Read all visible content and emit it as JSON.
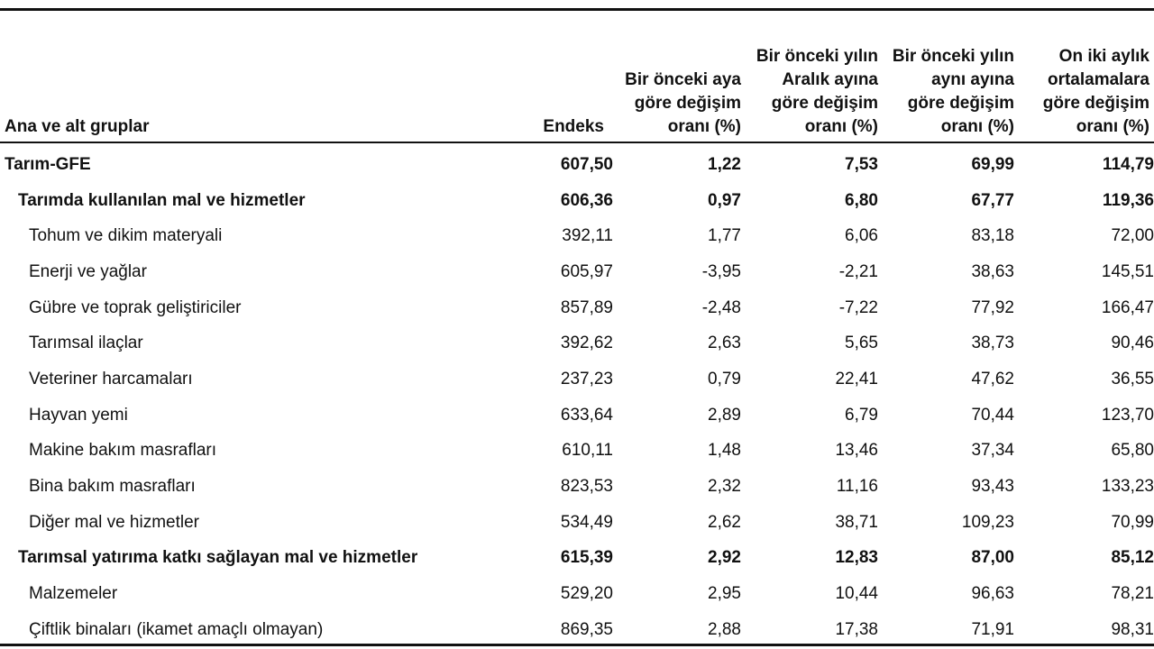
{
  "header": {
    "group_label": "Ana ve alt gruplar",
    "index_label": "Endeks",
    "col_monthly": [
      "Bir önceki aya",
      "göre değişim",
      "oranı (%)"
    ],
    "col_december": [
      "Bir önceki yılın",
      "Aralık ayına",
      "göre değişim",
      "oranı (%)"
    ],
    "col_same_month": [
      "Bir önceki yılın",
      "aynı ayına",
      "göre değişim",
      "oranı (%)"
    ],
    "col_twelve_month": [
      "On iki aylık",
      "ortalamalara",
      "göre değişim",
      "oranı (%)"
    ]
  },
  "rows": [
    {
      "label": "Tarım-GFE",
      "level": 0,
      "endeks": "607,50",
      "monthly": "1,22",
      "december": "7,53",
      "same_month": "69,99",
      "twelve_month": "114,79"
    },
    {
      "label": "Tarımda kullanılan mal ve hizmetler",
      "level": 1,
      "endeks": "606,36",
      "monthly": "0,97",
      "december": "6,80",
      "same_month": "67,77",
      "twelve_month": "119,36"
    },
    {
      "label": "Tohum ve dikim materyali",
      "level": 2,
      "endeks": "392,11",
      "monthly": "1,77",
      "december": "6,06",
      "same_month": "83,18",
      "twelve_month": "72,00"
    },
    {
      "label": "Enerji ve yağlar",
      "level": 2,
      "endeks": "605,97",
      "monthly": "-3,95",
      "december": "-2,21",
      "same_month": "38,63",
      "twelve_month": "145,51"
    },
    {
      "label": "Gübre ve toprak geliştiriciler",
      "level": 2,
      "endeks": "857,89",
      "monthly": "-2,48",
      "december": "-7,22",
      "same_month": "77,92",
      "twelve_month": "166,47"
    },
    {
      "label": "Tarımsal ilaçlar",
      "level": 2,
      "endeks": "392,62",
      "monthly": "2,63",
      "december": "5,65",
      "same_month": "38,73",
      "twelve_month": "90,46"
    },
    {
      "label": "Veteriner harcamaları",
      "level": 2,
      "endeks": "237,23",
      "monthly": "0,79",
      "december": "22,41",
      "same_month": "47,62",
      "twelve_month": "36,55"
    },
    {
      "label": "Hayvan yemi",
      "level": 2,
      "endeks": "633,64",
      "monthly": "2,89",
      "december": "6,79",
      "same_month": "70,44",
      "twelve_month": "123,70"
    },
    {
      "label": "Makine bakım masrafları",
      "level": 2,
      "endeks": "610,11",
      "monthly": "1,48",
      "december": "13,46",
      "same_month": "37,34",
      "twelve_month": "65,80"
    },
    {
      "label": "Bina bakım masrafları",
      "level": 2,
      "endeks": "823,53",
      "monthly": "2,32",
      "december": "11,16",
      "same_month": "93,43",
      "twelve_month": "133,23"
    },
    {
      "label": "Diğer mal ve hizmetler",
      "level": 2,
      "endeks": "534,49",
      "monthly": "2,62",
      "december": "38,71",
      "same_month": "109,23",
      "twelve_month": "70,99"
    },
    {
      "label": "Tarımsal yatırıma katkı sağlayan mal ve hizmetler",
      "level": 1,
      "endeks": "615,39",
      "monthly": "2,92",
      "december": "12,83",
      "same_month": "87,00",
      "twelve_month": "85,12"
    },
    {
      "label": "Malzemeler",
      "level": 2,
      "endeks": "529,20",
      "monthly": "2,95",
      "december": "10,44",
      "same_month": "96,63",
      "twelve_month": "78,21"
    },
    {
      "label": "Çiftlik binaları (ikamet amaçlı olmayan)",
      "level": 2,
      "endeks": "869,35",
      "monthly": "2,88",
      "december": "17,38",
      "same_month": "71,91",
      "twelve_month": "98,31"
    }
  ]
}
